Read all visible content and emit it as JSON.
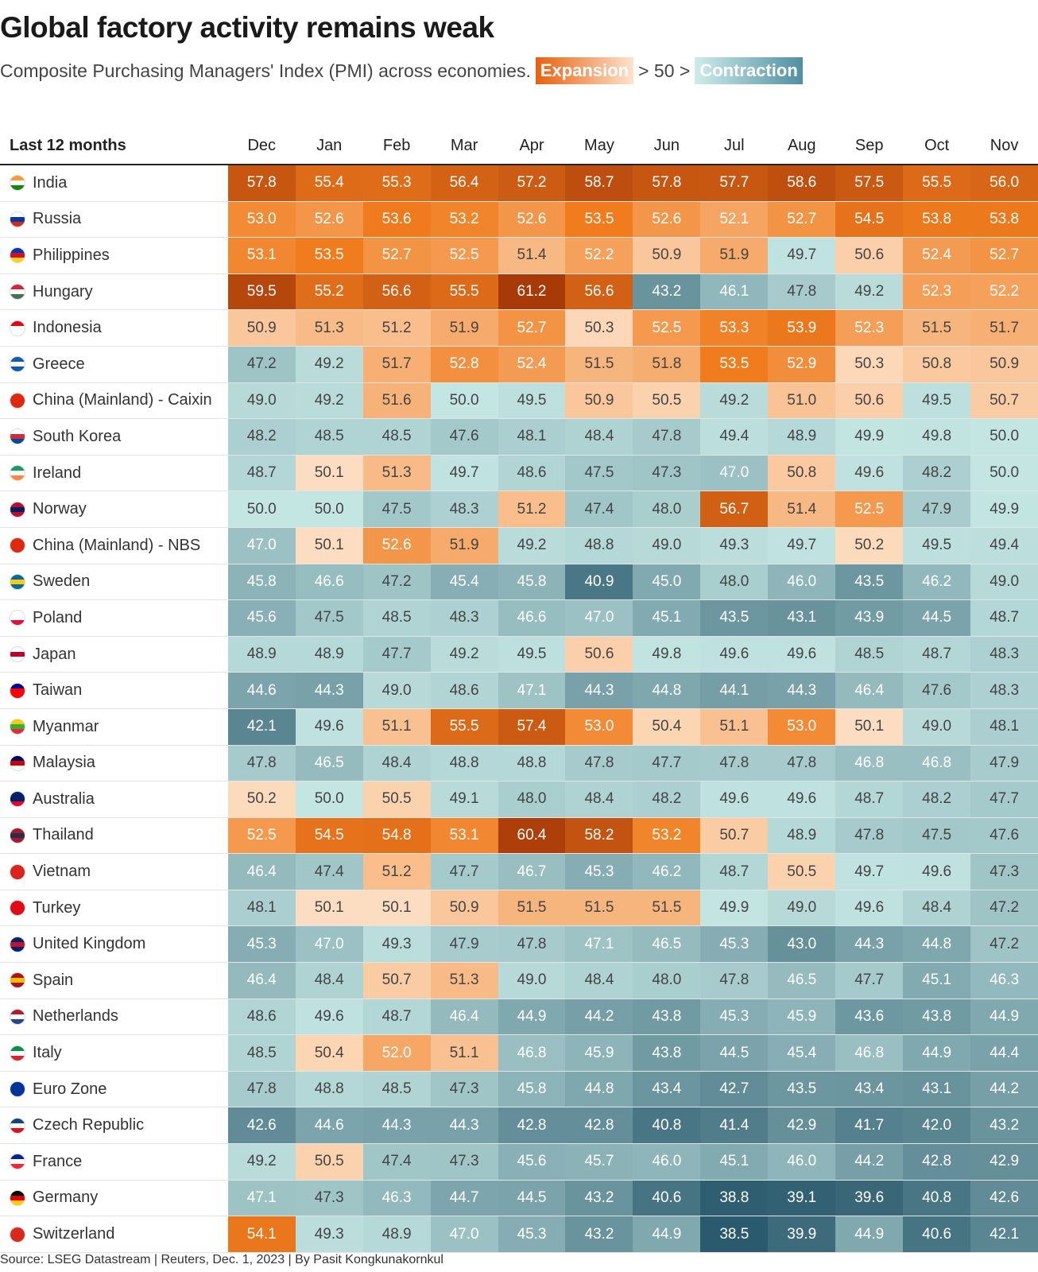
{
  "title": "Global factory activity remains weak",
  "subtitle": "Composite Purchasing Managers' Index (PMI) across economies.",
  "legend": {
    "expansion": "Expansion",
    "middle": "> 50 >",
    "contraction": "Contraction"
  },
  "source": "Source: LSEG Datastream | Reuters, Dec. 1, 2023 | By Pasit Kongkunakornkul",
  "chart_data": {
    "type": "heatmap",
    "title": "Global factory activity remains weak",
    "row_header": "Last 12 months",
    "threshold": 50,
    "columns": [
      "Dec",
      "Jan",
      "Feb",
      "Mar",
      "Apr",
      "May",
      "Jun",
      "Jul",
      "Aug",
      "Sep",
      "Oct",
      "Nov"
    ],
    "rows": [
      {
        "name": "India",
        "flag": [
          "#f93",
          "#fff",
          "#138808"
        ],
        "values": [
          57.8,
          55.4,
          55.3,
          56.4,
          57.2,
          58.7,
          57.8,
          57.7,
          58.6,
          57.5,
          55.5,
          56.0
        ]
      },
      {
        "name": "Russia",
        "flag": [
          "#fff",
          "#0039a6",
          "#d52b1e"
        ],
        "values": [
          53.0,
          52.6,
          53.6,
          53.2,
          52.6,
          53.5,
          52.6,
          52.1,
          52.7,
          54.5,
          53.8,
          53.8
        ]
      },
      {
        "name": "Philippines",
        "flag": [
          "#0038a8",
          "#ce1126",
          "#fcd116"
        ],
        "values": [
          53.1,
          53.5,
          52.7,
          52.5,
          51.4,
          52.2,
          50.9,
          51.9,
          49.7,
          50.6,
          52.4,
          52.7
        ]
      },
      {
        "name": "Hungary",
        "flag": [
          "#ce2939",
          "#fff",
          "#477050"
        ],
        "values": [
          59.5,
          55.2,
          56.6,
          55.5,
          61.2,
          56.6,
          43.2,
          46.1,
          47.8,
          49.2,
          52.3,
          52.2
        ]
      },
      {
        "name": "Indonesia",
        "flag": [
          "#e70011",
          "#fff",
          "#fff"
        ],
        "values": [
          50.9,
          51.3,
          51.2,
          51.9,
          52.7,
          50.3,
          52.5,
          53.3,
          53.9,
          52.3,
          51.5,
          51.7
        ]
      },
      {
        "name": "Greece",
        "flag": [
          "#0d5eaf",
          "#fff",
          "#0d5eaf"
        ],
        "values": [
          47.2,
          49.2,
          51.7,
          52.8,
          52.4,
          51.5,
          51.8,
          53.5,
          52.9,
          50.3,
          50.8,
          50.9
        ]
      },
      {
        "name": "China (Mainland) - Caixin",
        "flag": [
          "#de2910",
          "#de2910",
          "#de2910"
        ],
        "values": [
          49.0,
          49.2,
          51.6,
          50.0,
          49.5,
          50.9,
          50.5,
          49.2,
          51.0,
          50.6,
          49.5,
          50.7
        ]
      },
      {
        "name": "South Korea",
        "flag": [
          "#fff",
          "#cd2e3a",
          "#0047a0"
        ],
        "values": [
          48.2,
          48.5,
          48.5,
          47.6,
          48.1,
          48.4,
          47.8,
          49.4,
          48.9,
          49.9,
          49.8,
          50.0
        ]
      },
      {
        "name": "Ireland",
        "flag": [
          "#169b62",
          "#fff",
          "#ff883e"
        ],
        "values": [
          48.7,
          50.1,
          51.3,
          49.7,
          48.6,
          47.5,
          47.3,
          47.0,
          50.8,
          49.6,
          48.2,
          50.0
        ]
      },
      {
        "name": "Norway",
        "flag": [
          "#ba0c2f",
          "#00205b",
          "#ba0c2f"
        ],
        "values": [
          50.0,
          50.0,
          47.5,
          48.3,
          51.2,
          47.4,
          48.0,
          56.7,
          51.4,
          52.5,
          47.9,
          49.9
        ]
      },
      {
        "name": "China (Mainland) - NBS",
        "flag": [
          "#de2910",
          "#de2910",
          "#de2910"
        ],
        "values": [
          47.0,
          50.1,
          52.6,
          51.9,
          49.2,
          48.8,
          49.0,
          49.3,
          49.7,
          50.2,
          49.5,
          49.4
        ]
      },
      {
        "name": "Sweden",
        "flag": [
          "#006aa7",
          "#fecc00",
          "#006aa7"
        ],
        "values": [
          45.8,
          46.6,
          47.2,
          45.4,
          45.8,
          40.9,
          45.0,
          48.0,
          46.0,
          43.5,
          46.2,
          49.0
        ]
      },
      {
        "name": "Poland",
        "flag": [
          "#fff",
          "#fff",
          "#dc143c"
        ],
        "values": [
          45.6,
          47.5,
          48.5,
          48.3,
          46.6,
          47.0,
          45.1,
          43.5,
          43.1,
          43.9,
          44.5,
          48.7
        ]
      },
      {
        "name": "Japan",
        "flag": [
          "#fff",
          "#bc002d",
          "#fff"
        ],
        "values": [
          48.9,
          48.9,
          47.7,
          49.2,
          49.5,
          50.6,
          49.8,
          49.6,
          49.6,
          48.5,
          48.7,
          48.3
        ]
      },
      {
        "name": "Taiwan",
        "flag": [
          "#000095",
          "#fe0000",
          "#fe0000"
        ],
        "values": [
          44.6,
          44.3,
          49.0,
          48.6,
          47.1,
          44.3,
          44.8,
          44.1,
          44.3,
          46.4,
          47.6,
          48.3
        ]
      },
      {
        "name": "Myanmar",
        "flag": [
          "#fecb00",
          "#34b233",
          "#ea2839"
        ],
        "values": [
          42.1,
          49.6,
          51.1,
          55.5,
          57.4,
          53.0,
          50.4,
          51.1,
          53.0,
          50.1,
          49.0,
          48.1
        ]
      },
      {
        "name": "Malaysia",
        "flag": [
          "#010066",
          "#cc0001",
          "#fff"
        ],
        "values": [
          47.8,
          46.5,
          48.4,
          48.8,
          48.8,
          47.8,
          47.7,
          47.8,
          47.8,
          46.8,
          46.8,
          47.9
        ]
      },
      {
        "name": "Australia",
        "flag": [
          "#012169",
          "#012169",
          "#e4002b"
        ],
        "values": [
          50.2,
          50.0,
          50.5,
          49.1,
          48.0,
          48.4,
          48.2,
          49.6,
          49.6,
          48.7,
          48.2,
          47.7
        ]
      },
      {
        "name": "Thailand",
        "flag": [
          "#a51931",
          "#2d2a4a",
          "#a51931"
        ],
        "values": [
          52.5,
          54.5,
          54.8,
          53.1,
          60.4,
          58.2,
          53.2,
          50.7,
          48.9,
          47.8,
          47.5,
          47.6
        ]
      },
      {
        "name": "Vietnam",
        "flag": [
          "#da251d",
          "#da251d",
          "#da251d"
        ],
        "values": [
          46.4,
          47.4,
          51.2,
          47.7,
          46.7,
          45.3,
          46.2,
          48.7,
          50.5,
          49.7,
          49.6,
          47.3
        ]
      },
      {
        "name": "Turkey",
        "flag": [
          "#e30a17",
          "#e30a17",
          "#e30a17"
        ],
        "values": [
          48.1,
          50.1,
          50.1,
          50.9,
          51.5,
          51.5,
          51.5,
          49.9,
          49.0,
          49.6,
          48.4,
          47.2
        ]
      },
      {
        "name": "United Kingdom",
        "flag": [
          "#012169",
          "#c8102e",
          "#012169"
        ],
        "values": [
          45.3,
          47.0,
          49.3,
          47.9,
          47.8,
          47.1,
          46.5,
          45.3,
          43.0,
          44.3,
          44.8,
          47.2
        ]
      },
      {
        "name": "Spain",
        "flag": [
          "#aa151b",
          "#f1bf00",
          "#aa151b"
        ],
        "values": [
          46.4,
          48.4,
          50.7,
          51.3,
          49.0,
          48.4,
          48.0,
          47.8,
          46.5,
          47.7,
          45.1,
          46.3
        ]
      },
      {
        "name": "Netherlands",
        "flag": [
          "#ae1c28",
          "#fff",
          "#21468b"
        ],
        "values": [
          48.6,
          49.6,
          48.7,
          46.4,
          44.9,
          44.2,
          43.8,
          45.3,
          45.9,
          43.6,
          43.8,
          44.9
        ]
      },
      {
        "name": "Italy",
        "flag": [
          "#009246",
          "#fff",
          "#ce2b37"
        ],
        "values": [
          48.5,
          50.4,
          52.0,
          51.1,
          46.8,
          45.9,
          43.8,
          44.5,
          45.4,
          46.8,
          44.9,
          44.4
        ]
      },
      {
        "name": "Euro Zone",
        "flag": [
          "#003399",
          "#003399",
          "#003399"
        ],
        "values": [
          47.8,
          48.8,
          48.5,
          47.3,
          45.8,
          44.8,
          43.4,
          42.7,
          43.5,
          43.4,
          43.1,
          44.2
        ]
      },
      {
        "name": "Czech Republic",
        "flag": [
          "#11457e",
          "#fff",
          "#d7141a"
        ],
        "values": [
          42.6,
          44.6,
          44.3,
          44.3,
          42.8,
          42.8,
          40.8,
          41.4,
          42.9,
          41.7,
          42.0,
          43.2
        ]
      },
      {
        "name": "France",
        "flag": [
          "#002395",
          "#fff",
          "#ed2939"
        ],
        "values": [
          49.2,
          50.5,
          47.4,
          47.3,
          45.6,
          45.7,
          46.0,
          45.1,
          46.0,
          44.2,
          42.8,
          42.9
        ]
      },
      {
        "name": "Germany",
        "flag": [
          "#000",
          "#dd0000",
          "#ffce00"
        ],
        "values": [
          47.1,
          47.3,
          46.3,
          44.7,
          44.5,
          43.2,
          40.6,
          38.8,
          39.1,
          39.6,
          40.8,
          42.6
        ]
      },
      {
        "name": "Switzerland",
        "flag": [
          "#da291c",
          "#da291c",
          "#da291c"
        ],
        "values": [
          54.1,
          49.3,
          48.9,
          47.0,
          45.3,
          43.2,
          44.9,
          38.5,
          39.9,
          44.9,
          40.6,
          42.1
        ]
      }
    ],
    "colors": {
      "high": "#a83a08",
      "expansion": "#f07c1e",
      "neutral_high": "#fde0c6",
      "neutral_low": "#c4e6e3",
      "low": "#2a5a6d"
    }
  }
}
